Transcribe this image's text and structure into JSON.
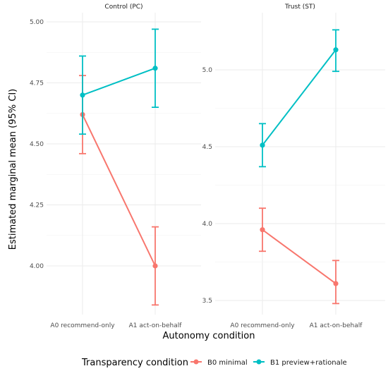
{
  "chart_data": {
    "type": "line",
    "xlabel": "Autonomy condition",
    "ylabel": "Estimated marginal mean (95% CI)",
    "categories": [
      "A0 recommend-only",
      "A1 act-on-behalf"
    ],
    "legend_title": "Transparency condition",
    "legend_position": "bottom",
    "grid": true,
    "series_colors": {
      "B0 minimal": "#F8766D",
      "B1 preview+rationale": "#00BFC4"
    },
    "panels": [
      {
        "title": "Control (PC)",
        "ylim": [
          3.8,
          5.05
        ],
        "yticks": [
          4.0,
          4.25,
          4.5,
          4.75,
          5.0
        ],
        "ytick_labels": [
          "4.00",
          "4.25",
          "4.50",
          "4.75",
          "5.00"
        ],
        "series": [
          {
            "name": "B0 minimal",
            "values": [
              4.62,
              4.0
            ],
            "lower": [
              4.46,
              3.84
            ],
            "upper": [
              4.78,
              4.16
            ]
          },
          {
            "name": "B1 preview+rationale",
            "values": [
              4.7,
              4.81
            ],
            "lower": [
              4.54,
              4.65
            ],
            "upper": [
              4.86,
              4.97
            ]
          }
        ]
      },
      {
        "title": "Trust (ST)",
        "ylim": [
          3.4,
          5.35
        ],
        "yticks": [
          3.5,
          4.0,
          4.5,
          5.0
        ],
        "ytick_labels": [
          "3.5",
          "4.0",
          "4.5",
          "5.0"
        ],
        "series": [
          {
            "name": "B0 minimal",
            "values": [
              3.96,
              3.61
            ],
            "lower": [
              3.82,
              3.48
            ],
            "upper": [
              4.1,
              3.76
            ]
          },
          {
            "name": "B1 preview+rationale",
            "values": [
              4.51,
              5.13
            ],
            "lower": [
              4.37,
              4.99
            ],
            "upper": [
              4.65,
              5.26
            ]
          }
        ]
      }
    ]
  }
}
